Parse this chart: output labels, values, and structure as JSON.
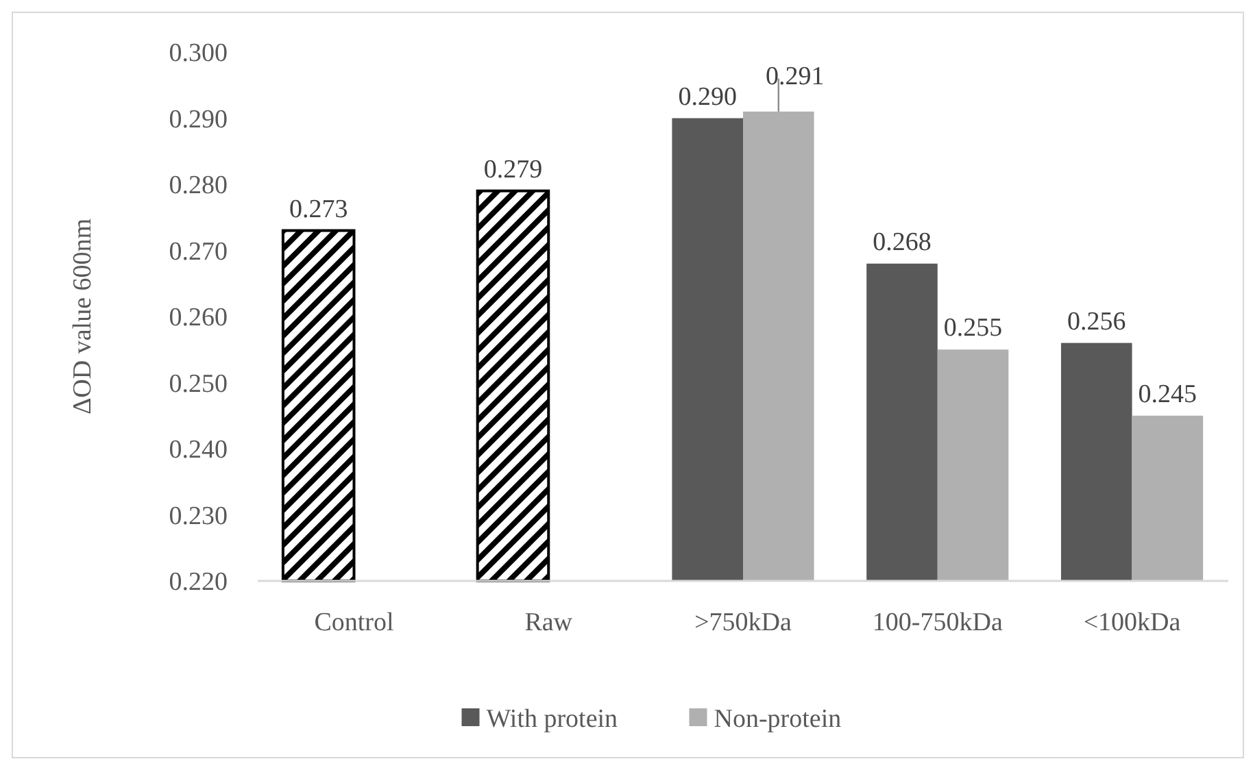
{
  "chart_data": {
    "type": "bar",
    "ylabel": "ΔOD value 600nm",
    "categories": [
      "Control",
      "Raw",
      ">750kDa",
      "100-750kDa",
      "<100kDa"
    ],
    "series": [
      {
        "color": "#000000",
        "values": [
          0.273,
          0.279,
          null,
          null,
          null
        ],
        "value_labels": [
          "0.273",
          "0.279",
          null,
          null,
          null
        ]
      },
      {
        "name": "With protein",
        "color": "#595959",
        "values": [
          null,
          null,
          0.29,
          0.268,
          0.256
        ],
        "value_labels": [
          null,
          null,
          "0.290",
          "0.268",
          "0.256"
        ]
      },
      {
        "name": "Non-protein",
        "color": "#b0b0b0",
        "values": [
          null,
          null,
          0.291,
          0.255,
          0.245
        ],
        "value_labels": [
          null,
          null,
          "0.291",
          "0.255",
          "0.245"
        ],
        "errors": [
          null,
          null,
          [
            0.291,
            0.296
          ],
          null,
          null
        ]
      }
    ],
    "ylim": [
      0.22,
      0.3
    ],
    "yticks": [
      {
        "value": 0.22,
        "label": "0.220"
      },
      {
        "value": 0.23,
        "label": "0.230"
      },
      {
        "value": 0.24,
        "label": "0.240"
      },
      {
        "value": 0.25,
        "label": "0.250"
      },
      {
        "value": 0.26,
        "label": "0.260"
      },
      {
        "value": 0.27,
        "label": "0.270"
      },
      {
        "value": 0.28,
        "label": "0.280"
      },
      {
        "value": 0.29,
        "label": "0.290"
      },
      {
        "value": 0.3,
        "label": "0.300"
      }
    ],
    "grid": false,
    "legend": "bottom"
  }
}
